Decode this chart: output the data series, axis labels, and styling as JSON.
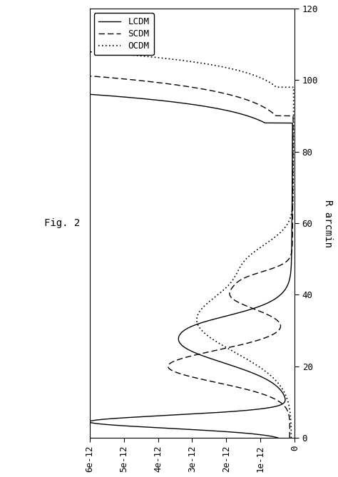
{
  "background_color": "#ffffff",
  "fig_label": "Fig. 2",
  "legend_labels": [
    "LCDM",
    "SCDM",
    "OCDM"
  ],
  "x_lim": [
    6e-12,
    0
  ],
  "y_lim": [
    0,
    120
  ],
  "x_ticks": [
    6e-12,
    5e-12,
    4e-12,
    3e-12,
    2e-12,
    1e-12,
    0
  ],
  "x_tick_labels": [
    "6e-12",
    "5e-12",
    "4e-12",
    "3e-12",
    "2e-12",
    "1e-12",
    "0"
  ],
  "y_ticks": [
    0,
    20,
    40,
    60,
    80,
    100,
    120
  ],
  "y_tick_labels": [
    "0",
    "20",
    "40",
    "60",
    "80",
    "100",
    "120"
  ],
  "y_label": "R arcmin"
}
